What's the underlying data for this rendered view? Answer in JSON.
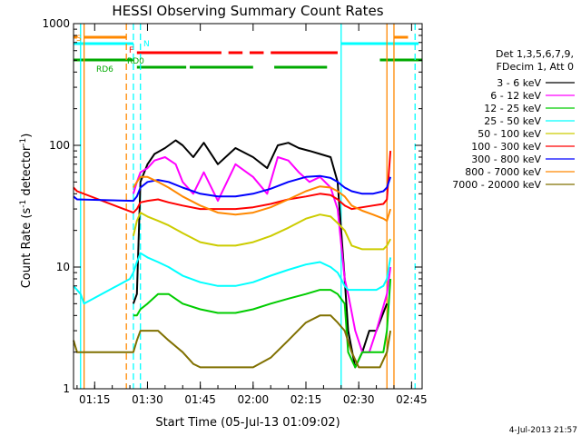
{
  "chart_data": {
    "type": "line",
    "title": "HESSI Observing Summary Count Rates",
    "xlabel": "Start Time (05-Jul-13 01:09:02)",
    "ylabel": "Count Rate (s⁻¹ detector⁻¹)",
    "ylabel_pre": "Count Rate (s",
    "ylabel_exp1": "-1",
    "ylabel_mid": " detector",
    "ylabel_exp2": "-1",
    "ylabel_post": ")",
    "xlim": [
      "01:09",
      "02:48"
    ],
    "ylim": [
      1,
      1000
    ],
    "yscale": "log",
    "grid": false,
    "legend_position": "right",
    "x_ticks": [
      "01:15",
      "01:30",
      "01:45",
      "02:00",
      "02:15",
      "02:30",
      "02:45"
    ],
    "y_ticks": [
      "1",
      "10",
      "100",
      "1000"
    ],
    "legend_header": [
      "Det 1,3,5,6,7,9,",
      "FDecim 1, Att 0"
    ],
    "timestamp": "4-Jul-2013 21:57",
    "series": [
      {
        "name": "3 - 6 keV",
        "color": "#000000",
        "x": [
          "01:26",
          "01:27",
          "01:28",
          "01:30",
          "01:32",
          "01:35",
          "01:38",
          "01:40",
          "01:43",
          "01:46",
          "01:50",
          "01:55",
          "02:00",
          "02:04",
          "02:07",
          "02:10",
          "02:13",
          "02:16",
          "02:19",
          "02:22",
          "02:24",
          "02:26",
          "02:27",
          "02:29",
          "02:31",
          "02:33",
          "02:35",
          "02:38"
        ],
        "y": [
          5,
          6,
          50,
          70,
          85,
          95,
          110,
          100,
          80,
          105,
          70,
          95,
          80,
          65,
          100,
          105,
          95,
          90,
          85,
          80,
          50,
          8,
          3,
          1.5,
          2,
          3,
          3,
          5
        ]
      },
      {
        "name": "6 - 12 keV",
        "color": "#ff00ff",
        "x": [
          "01:26",
          "01:27",
          "01:28",
          "01:30",
          "01:32",
          "01:35",
          "01:38",
          "01:40",
          "01:43",
          "01:46",
          "01:50",
          "01:55",
          "02:00",
          "02:04",
          "02:07",
          "02:10",
          "02:13",
          "02:16",
          "02:19",
          "02:22",
          "02:24",
          "02:26",
          "02:27",
          "02:29",
          "02:31",
          "02:33",
          "02:35",
          "02:38",
          "02:39"
        ],
        "y": [
          40,
          50,
          60,
          65,
          75,
          80,
          70,
          50,
          40,
          60,
          35,
          70,
          55,
          40,
          80,
          75,
          60,
          50,
          55,
          45,
          30,
          8,
          6,
          3,
          2,
          2,
          3,
          6,
          10
        ]
      },
      {
        "name": "12 - 25 keV",
        "color": "#00cc00",
        "x": [
          "01:26",
          "01:27",
          "01:28",
          "01:30",
          "01:33",
          "01:36",
          "01:40",
          "01:45",
          "01:50",
          "01:55",
          "02:00",
          "02:05",
          "02:10",
          "02:15",
          "02:19",
          "02:22",
          "02:24",
          "02:26",
          "02:27",
          "02:29",
          "02:31",
          "02:33",
          "02:35",
          "02:37",
          "02:38",
          "02:39"
        ],
        "y": [
          4,
          4,
          4.5,
          5,
          6,
          6,
          5,
          4.5,
          4.2,
          4.2,
          4.5,
          5,
          5.5,
          6,
          6.5,
          6.5,
          6,
          5,
          2,
          1.5,
          2,
          2,
          2,
          2,
          3,
          8
        ]
      },
      {
        "name": "25 - 50 keV",
        "color": "#00ffff",
        "x": [
          "01:09",
          "01:11",
          "01:12",
          "01:25",
          "01:26",
          "01:27",
          "01:28",
          "01:30",
          "01:33",
          "01:36",
          "01:40",
          "01:45",
          "01:50",
          "01:55",
          "02:00",
          "02:05",
          "02:10",
          "02:15",
          "02:19",
          "02:22",
          "02:24",
          "02:25",
          "02:26",
          "02:27",
          "02:29",
          "02:31",
          "02:33",
          "02:35",
          "02:37",
          "02:38",
          "02:39"
        ],
        "y": [
          7,
          6,
          5,
          8,
          9,
          11,
          13,
          12,
          11,
          10,
          8.5,
          7.5,
          7,
          7,
          7.5,
          8.5,
          9.5,
          10.5,
          11,
          10,
          9,
          8,
          7,
          6.5,
          6.5,
          6.5,
          6.5,
          6.5,
          7,
          8,
          12
        ]
      },
      {
        "name": "50 - 100 keV",
        "color": "#cccc00",
        "x": [
          "01:26",
          "01:27",
          "01:28",
          "01:30",
          "01:33",
          "01:36",
          "01:40",
          "01:45",
          "01:50",
          "01:55",
          "02:00",
          "02:05",
          "02:10",
          "02:15",
          "02:19",
          "02:22",
          "02:24",
          "02:26",
          "02:28",
          "02:31",
          "02:34",
          "02:37",
          "02:38",
          "02:39"
        ],
        "y": [
          18,
          24,
          28,
          26,
          24,
          22,
          19,
          16,
          15,
          15,
          16,
          18,
          21,
          25,
          27,
          26,
          23,
          20,
          15,
          14,
          14,
          14,
          15,
          17
        ]
      },
      {
        "name": "100 - 300 keV",
        "color": "#ff0000",
        "x": [
          "01:09",
          "01:10",
          "01:26",
          "01:27",
          "01:28",
          "01:30",
          "01:33",
          "01:36",
          "01:40",
          "01:45",
          "01:50",
          "01:55",
          "02:00",
          "02:05",
          "02:10",
          "02:15",
          "02:19",
          "02:22",
          "02:24",
          "02:26",
          "02:28",
          "02:31",
          "02:34",
          "02:37",
          "02:38",
          "02:39"
        ],
        "y": [
          45,
          42,
          28,
          30,
          34,
          35,
          36,
          34,
          32,
          30,
          30,
          30,
          31,
          33,
          36,
          38,
          40,
          39,
          36,
          32,
          30,
          31,
          32,
          33,
          36,
          90
        ]
      },
      {
        "name": "300 - 800 keV",
        "color": "#0000ff",
        "x": [
          "01:09",
          "01:10",
          "01:26",
          "01:27",
          "01:28",
          "01:30",
          "01:33",
          "01:36",
          "01:40",
          "01:45",
          "01:50",
          "01:55",
          "02:00",
          "02:05",
          "02:10",
          "02:15",
          "02:19",
          "02:22",
          "02:24",
          "02:26",
          "02:28",
          "02:31",
          "02:34",
          "02:37",
          "02:38",
          "02:39"
        ],
        "y": [
          38,
          36,
          35,
          38,
          45,
          50,
          52,
          50,
          45,
          40,
          38,
          38,
          40,
          44,
          50,
          55,
          56,
          54,
          50,
          45,
          42,
          40,
          40,
          42,
          45,
          55
        ]
      },
      {
        "name": "800 - 7000 keV",
        "color": "#ff8800",
        "x": [
          "01:26",
          "01:27",
          "01:28",
          "01:30",
          "01:33",
          "01:36",
          "01:40",
          "01:45",
          "01:50",
          "01:55",
          "02:00",
          "02:05",
          "02:10",
          "02:15",
          "02:19",
          "02:22",
          "02:24",
          "02:26",
          "02:28",
          "02:31",
          "02:34",
          "02:37",
          "02:38",
          "02:39"
        ],
        "y": [
          45,
          50,
          55,
          55,
          50,
          45,
          38,
          32,
          28,
          27,
          28,
          31,
          36,
          42,
          46,
          45,
          42,
          38,
          32,
          29,
          27,
          25,
          24,
          30
        ]
      },
      {
        "name": "7000 - 20000 keV",
        "color": "#807000",
        "x": [
          "01:09",
          "01:10",
          "01:26",
          "01:27",
          "01:28",
          "01:30",
          "01:33",
          "01:36",
          "01:40",
          "01:43",
          "01:45",
          "01:50",
          "01:55",
          "02:00",
          "02:05",
          "02:10",
          "02:15",
          "02:19",
          "02:22",
          "02:24",
          "02:26",
          "02:28",
          "02:30",
          "02:33",
          "02:36",
          "02:38",
          "02:39"
        ],
        "y": [
          2.5,
          2,
          2,
          2.5,
          3,
          3,
          3,
          2.5,
          2,
          1.6,
          1.5,
          1.5,
          1.5,
          1.5,
          1.8,
          2.5,
          3.5,
          4,
          4,
          3.5,
          3,
          2,
          1.5,
          1.5,
          1.5,
          2,
          3
        ]
      }
    ],
    "vertical_markers": [
      {
        "time": "01:11",
        "color": "#00ffff",
        "style": "solid"
      },
      {
        "time": "01:12",
        "color": "#ff8800",
        "style": "solid"
      },
      {
        "time": "01:24",
        "color": "#ff8800",
        "style": "dashed"
      },
      {
        "time": "01:26",
        "color": "#00ffff",
        "style": "dashed"
      },
      {
        "time": "01:28",
        "color": "#00ffff",
        "style": "dashed"
      },
      {
        "time": "02:25",
        "color": "#00ffff",
        "style": "solid"
      },
      {
        "time": "02:38",
        "color": "#ff8800",
        "style": "solid"
      },
      {
        "time": "02:40",
        "color": "#ff8800",
        "style": "solid"
      },
      {
        "time": "02:46",
        "color": "#00ffff",
        "style": "dashed"
      }
    ],
    "flag_bars": [
      {
        "label": "S",
        "color": "#ff8800",
        "segments": [
          [
            "01:09",
            "01:10"
          ],
          [
            "01:12",
            "01:24"
          ],
          [
            "02:40",
            "02:44"
          ]
        ]
      },
      {
        "label": "N",
        "color": "#00ffff",
        "segments": [
          [
            "01:09",
            "01:26"
          ],
          [
            "02:25",
            "02:47"
          ]
        ]
      },
      {
        "label": "F",
        "color": "#ff0000",
        "segments": [
          [
            "01:27",
            "01:51"
          ],
          [
            "01:53",
            "01:57"
          ],
          [
            "01:59",
            "02:03"
          ],
          [
            "02:05",
            "02:24"
          ]
        ]
      },
      {
        "label": "RD0",
        "color": "#00aa00",
        "segments": [
          [
            "01:09",
            "01:26"
          ],
          [
            "02:36",
            "02:48"
          ]
        ]
      },
      {
        "label": "RD6",
        "color": "#00aa00",
        "segments": [
          [
            "01:27",
            "01:41"
          ],
          [
            "01:42",
            "02:00"
          ],
          [
            "02:06",
            "02:21"
          ]
        ]
      }
    ]
  }
}
